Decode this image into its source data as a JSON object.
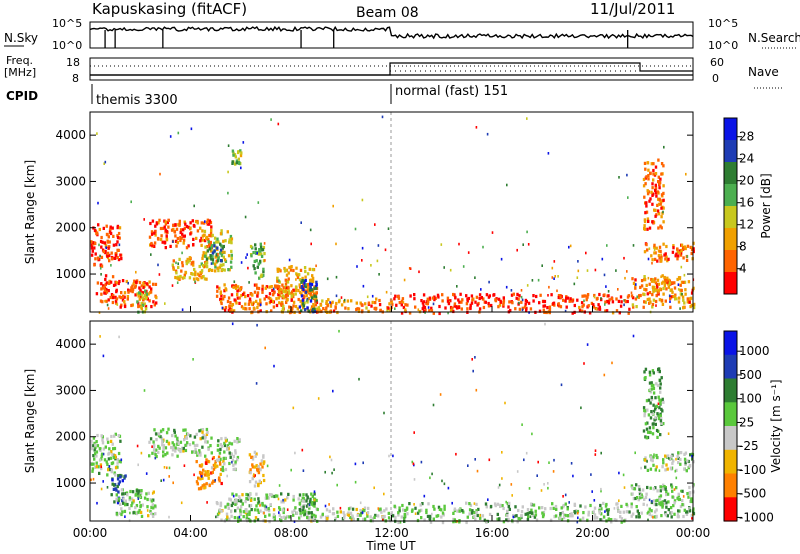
{
  "header": {
    "station": "Kapuskasing (fitACF)",
    "beam": "Beam 08",
    "date": "11/Jul/2011"
  },
  "noise_panel": {
    "left_label": "N.Sky",
    "right_label": "N.Search",
    "y_ticks": [
      "10^5",
      "10^0"
    ],
    "right_ticks": [
      "10^5",
      "10^0"
    ]
  },
  "freq_panel": {
    "left_label_1": "Freq.",
    "left_label_2": "[MHz]",
    "left_ticks": [
      "18",
      "8"
    ],
    "right_label": "Nave",
    "right_ticks": [
      "60",
      "0"
    ]
  },
  "cpid": {
    "label": "CPID",
    "segments": [
      {
        "name": "themis 3300",
        "start_h": 0,
        "end_h": 12
      },
      {
        "name": "normal (fast) 151",
        "start_h": 12,
        "end_h": 24
      }
    ]
  },
  "colors": {
    "power_scale": [
      "#0a14e6",
      "#1e3cb4",
      "#2e7d32",
      "#4caf50",
      "#c8c81e",
      "#f0a000",
      "#ff6400",
      "#ff0000"
    ],
    "velocity_scale": [
      "#0a14e6",
      "#1e3cb4",
      "#2e7d32",
      "#5ac83c",
      "#c8c8c8",
      "#f0b400",
      "#ff8000",
      "#ff0000"
    ]
  },
  "chart_data": [
    {
      "type": "heatmap",
      "panel": "power",
      "xlabel": "Time UT",
      "ylabel": "Slant Range [km]",
      "x_range_hours": [
        0,
        24
      ],
      "x_ticks": [
        "00:00",
        "04:00",
        "08:00",
        "12:00",
        "16:00",
        "20:00",
        "00:00"
      ],
      "ylim": [
        180,
        4500
      ],
      "y_ticks": [
        1000,
        2000,
        3000,
        4000
      ],
      "colorbar_label": "Power [dB]",
      "colorbar_ticks": [
        "28",
        "24",
        "20",
        "16",
        "12",
        "8",
        "4"
      ],
      "colorbar_range": [
        0,
        30
      ],
      "regions": [
        {
          "t0": 0.0,
          "t1": 1.2,
          "r0": 1200,
          "r1": 2100,
          "level": 0.12
        },
        {
          "t0": 0.2,
          "t1": 1.0,
          "r0": 400,
          "r1": 1000,
          "level": 0.15
        },
        {
          "t0": 1.0,
          "t1": 2.6,
          "r0": 300,
          "r1": 900,
          "level": 0.18
        },
        {
          "t0": 1.8,
          "t1": 2.3,
          "r0": 200,
          "r1": 700,
          "level": 0.45
        },
        {
          "t0": 2.3,
          "t1": 4.8,
          "r0": 1600,
          "r1": 2200,
          "level": 0.15
        },
        {
          "t0": 3.2,
          "t1": 4.6,
          "r0": 900,
          "r1": 1400,
          "level": 0.35
        },
        {
          "t0": 4.4,
          "t1": 5.6,
          "r0": 1100,
          "r1": 2000,
          "level": 0.45
        },
        {
          "t0": 4.6,
          "t1": 5.3,
          "r0": 1300,
          "r1": 1700,
          "level": 0.7
        },
        {
          "t0": 5.6,
          "t1": 6.0,
          "r0": 3400,
          "r1": 3700,
          "level": 0.5
        },
        {
          "t0": 6.3,
          "t1": 6.9,
          "r0": 900,
          "r1": 1700,
          "level": 0.55
        },
        {
          "t0": 5.0,
          "t1": 9.0,
          "r0": 200,
          "r1": 800,
          "level": 0.2
        },
        {
          "t0": 7.4,
          "t1": 9.0,
          "r0": 200,
          "r1": 1200,
          "level": 0.3
        },
        {
          "t0": 8.3,
          "t1": 9.0,
          "r0": 200,
          "r1": 900,
          "level": 0.8
        },
        {
          "t0": 9.0,
          "t1": 12.0,
          "r0": 200,
          "r1": 500,
          "level": 0.25
        },
        {
          "t0": 12.0,
          "t1": 21.5,
          "r0": 180,
          "r1": 600,
          "level": 0.12
        },
        {
          "t0": 21.5,
          "t1": 24.0,
          "r0": 300,
          "r1": 1000,
          "level": 0.25
        },
        {
          "t0": 22.0,
          "t1": 24.0,
          "r0": 1300,
          "r1": 1700,
          "level": 0.2
        },
        {
          "t0": 22.0,
          "t1": 22.8,
          "r0": 2000,
          "r1": 3500,
          "level": 0.2
        }
      ]
    },
    {
      "type": "heatmap",
      "panel": "velocity",
      "xlabel": "Time UT",
      "ylabel": "Slant Range [km]",
      "x_range_hours": [
        0,
        24
      ],
      "x_ticks": [
        "00:00",
        "04:00",
        "08:00",
        "12:00",
        "16:00",
        "20:00",
        "00:00"
      ],
      "ylim": [
        180,
        4500
      ],
      "y_ticks": [
        1000,
        2000,
        3000,
        4000
      ],
      "colorbar_label": "Velocity [m s⁻¹]",
      "colorbar_ticks": [
        "1000",
        "500",
        "100",
        "25",
        "-25",
        "-100",
        "-500",
        "-1000"
      ],
      "colorbar_range": [
        -1000,
        1000
      ],
      "regions": [
        {
          "t0": 0.0,
          "t1": 1.2,
          "r0": 1200,
          "r1": 2100,
          "level": 0.5
        },
        {
          "t0": 0.8,
          "t1": 1.4,
          "r0": 600,
          "r1": 1200,
          "level": 0.8
        },
        {
          "t0": 1.0,
          "t1": 2.6,
          "r0": 300,
          "r1": 900,
          "level": 0.5
        },
        {
          "t0": 2.3,
          "t1": 4.8,
          "r0": 1600,
          "r1": 2200,
          "level": 0.5
        },
        {
          "t0": 4.2,
          "t1": 5.2,
          "r0": 900,
          "r1": 1600,
          "level": 0.25
        },
        {
          "t0": 5.0,
          "t1": 6.0,
          "r0": 1300,
          "r1": 2000,
          "level": 0.5
        },
        {
          "t0": 6.3,
          "t1": 6.9,
          "r0": 900,
          "r1": 1700,
          "level": 0.3
        },
        {
          "t0": 5.0,
          "t1": 9.0,
          "r0": 200,
          "r1": 800,
          "level": 0.5
        },
        {
          "t0": 8.3,
          "t1": 9.0,
          "r0": 300,
          "r1": 800,
          "level": 0.6
        },
        {
          "t0": 9.0,
          "t1": 12.0,
          "r0": 200,
          "r1": 500,
          "level": 0.5
        },
        {
          "t0": 12.0,
          "t1": 21.5,
          "r0": 180,
          "r1": 600,
          "level": 0.55
        },
        {
          "t0": 21.5,
          "t1": 24.0,
          "r0": 300,
          "r1": 1000,
          "level": 0.55
        },
        {
          "t0": 22.0,
          "t1": 24.0,
          "r0": 1300,
          "r1": 1700,
          "level": 0.5
        },
        {
          "t0": 22.0,
          "t1": 22.8,
          "r0": 2000,
          "r1": 3500,
          "level": 0.6
        }
      ]
    }
  ]
}
